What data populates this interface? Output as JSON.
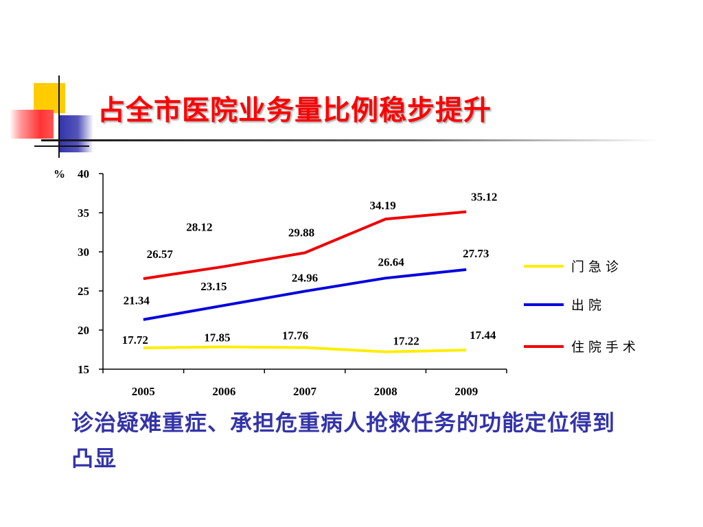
{
  "slide": {
    "title": "占全市医院业务量比例稳步提升",
    "bottom_text": "诊治疑难重症、承担危重病人抢救任务的功能定位得到凸显",
    "colors": {
      "title": "#ff0000",
      "bottom_text": "#3333aa",
      "deco_yellow": "#ffcc00",
      "deco_blue": "#3333aa",
      "deco_red": "#ff3333"
    }
  },
  "chart_data": {
    "type": "line",
    "categories": [
      "2005",
      "2006",
      "2007",
      "2008",
      "2009"
    ],
    "ylabel": "%",
    "ylim": [
      15,
      40
    ],
    "yticks": [
      "40",
      "35",
      "30",
      "25",
      "20",
      "15"
    ],
    "grid": false,
    "legend_position": "right",
    "series": [
      {
        "name": "门急诊",
        "color": "#ffee00",
        "values": [
          17.72,
          17.85,
          17.76,
          17.22,
          17.44
        ],
        "labels": [
          "17.72",
          "17.85",
          "17.76",
          "17.22",
          "17.44"
        ]
      },
      {
        "name": "出院",
        "color": "#0000dd",
        "values": [
          21.34,
          23.15,
          24.96,
          26.64,
          27.73
        ],
        "labels": [
          "21.34",
          "23.15",
          "24.96",
          "26.64",
          "27.73"
        ]
      },
      {
        "name": "住院手术",
        "color": "#ee0000",
        "values": [
          26.57,
          28.12,
          29.88,
          34.19,
          35.12
        ],
        "labels": [
          "26.57",
          "28.12",
          "29.88",
          "34.19",
          "35.12"
        ]
      }
    ]
  }
}
